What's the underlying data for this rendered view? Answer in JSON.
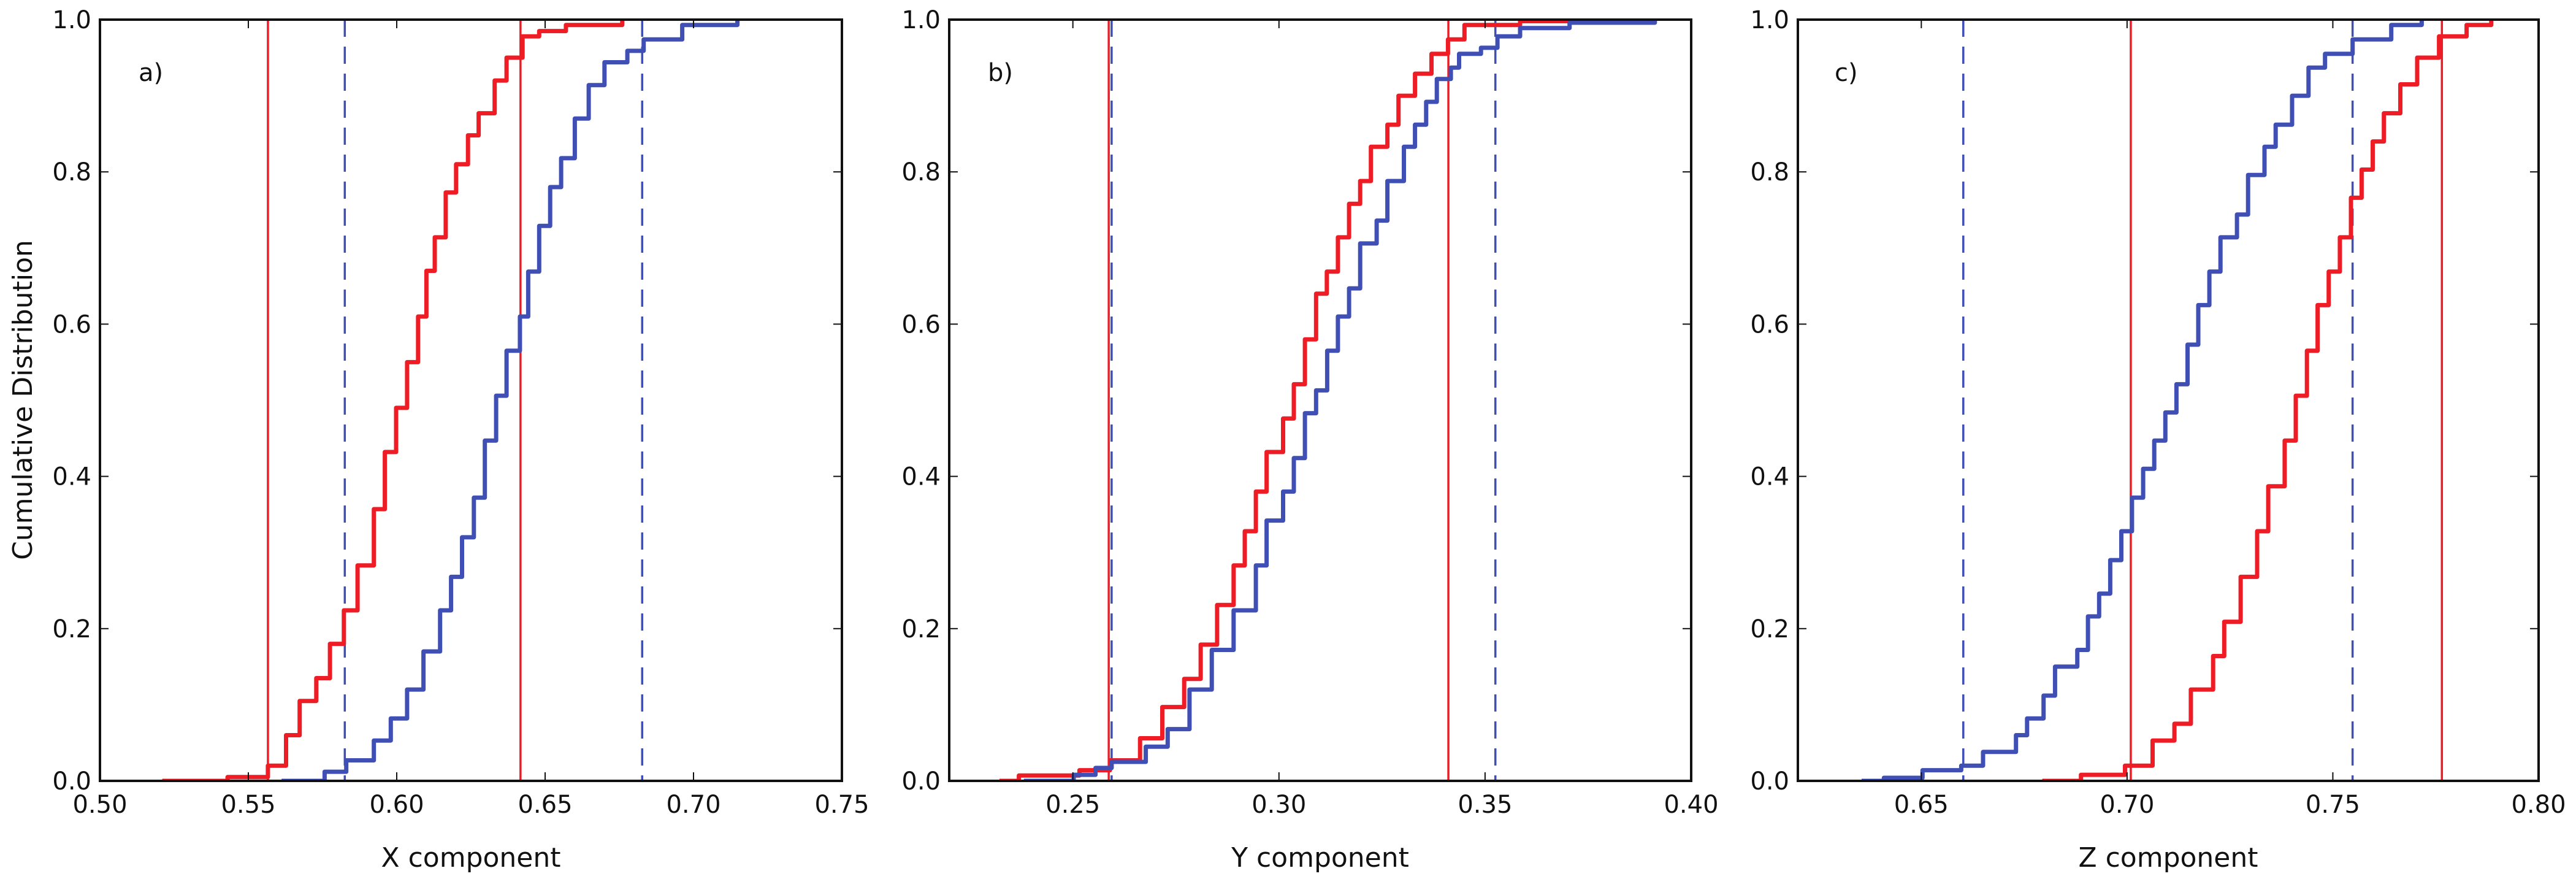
{
  "figure": {
    "ylabel": "Cumulative Distribution",
    "colors": {
      "red": "#ee1c25",
      "blue": "#3f4fb3",
      "axis": "#111111"
    }
  },
  "chart_data": [
    {
      "type": "line",
      "panel_label": "a)",
      "xlabel": "X component",
      "ylabel": "Cumulative Distribution",
      "xlim": [
        0.5,
        0.75
      ],
      "ylim": [
        0.0,
        1.0
      ],
      "xticks": [
        "0.50",
        "0.55",
        "0.60",
        "0.65",
        "0.70",
        "0.75"
      ],
      "yticks": [
        "0.0",
        "0.2",
        "0.4",
        "0.6",
        "0.8",
        "1.0"
      ],
      "grid": false,
      "series": [
        {
          "color": "red",
          "style": "solid",
          "x": [
            0.521,
            0.543,
            0.5566,
            0.5627,
            0.5673,
            0.5729,
            0.5775,
            0.5822,
            0.5868,
            0.5923,
            0.596,
            0.5998,
            0.6035,
            0.6072,
            0.61,
            0.6128,
            0.6165,
            0.62,
            0.624,
            0.6276,
            0.633,
            0.637,
            0.6424,
            0.648,
            0.657,
            0.676
          ],
          "y": [
            0,
            0.005,
            0.02,
            0.06,
            0.105,
            0.135,
            0.18,
            0.224,
            0.283,
            0.357,
            0.432,
            0.49,
            0.55,
            0.61,
            0.67,
            0.714,
            0.773,
            0.81,
            0.848,
            0.877,
            0.92,
            0.95,
            0.978,
            0.985,
            0.993,
            1.0
          ]
        },
        {
          "color": "blue",
          "style": "solid",
          "x": [
            0.5612,
            0.5757,
            0.583,
            0.5923,
            0.598,
            0.6035,
            0.609,
            0.6146,
            0.6183,
            0.622,
            0.626,
            0.6297,
            0.6335,
            0.637,
            0.6415,
            0.6443,
            0.648,
            0.6517,
            0.6554,
            0.66,
            0.6647,
            0.67,
            0.6777,
            0.6832,
            0.6962,
            0.7148
          ],
          "y": [
            0,
            0.012,
            0.027,
            0.053,
            0.082,
            0.12,
            0.17,
            0.224,
            0.268,
            0.32,
            0.372,
            0.447,
            0.506,
            0.565,
            0.61,
            0.669,
            0.729,
            0.78,
            0.818,
            0.87,
            0.914,
            0.944,
            0.959,
            0.974,
            0.993,
            1.0
          ]
        }
      ],
      "vlines": [
        {
          "x": 0.5566,
          "color": "red",
          "style": "solid"
        },
        {
          "x": 0.6417,
          "color": "red",
          "style": "solid"
        },
        {
          "x": 0.5825,
          "color": "blue",
          "style": "dashed"
        },
        {
          "x": 0.6827,
          "color": "blue",
          "style": "dashed"
        }
      ]
    },
    {
      "type": "line",
      "panel_label": "b)",
      "xlabel": "Y component",
      "ylabel": "",
      "xlim": [
        0.22,
        0.4
      ],
      "ylim": [
        0.0,
        1.0
      ],
      "xticks": [
        "0.25",
        "0.30",
        "0.35",
        "0.40"
      ],
      "yticks": [
        "0.0",
        "0.2",
        "0.4",
        "0.6",
        "0.8",
        "1.0"
      ],
      "grid": false,
      "series": [
        {
          "color": "red",
          "style": "solid",
          "x": [
            0.2322,
            0.2369,
            0.2516,
            0.259,
            0.2663,
            0.2717,
            0.277,
            0.281,
            0.285,
            0.289,
            0.2917,
            0.2944,
            0.297,
            0.301,
            0.3036,
            0.3063,
            0.309,
            0.3116,
            0.3143,
            0.317,
            0.3197,
            0.3223,
            0.3263,
            0.329,
            0.333,
            0.337,
            0.341,
            0.345,
            0.3585,
            0.372
          ],
          "y": [
            0,
            0.007,
            0.014,
            0.027,
            0.056,
            0.097,
            0.134,
            0.179,
            0.231,
            0.283,
            0.328,
            0.38,
            0.432,
            0.476,
            0.521,
            0.58,
            0.64,
            0.669,
            0.714,
            0.758,
            0.788,
            0.833,
            0.862,
            0.9,
            0.929,
            0.955,
            0.974,
            0.993,
            0.998,
            1.0
          ]
        },
        {
          "color": "blue",
          "style": "solid",
          "x": [
            0.2381,
            0.2502,
            0.2555,
            0.2594,
            0.2677,
            0.273,
            0.2783,
            0.2837,
            0.289,
            0.2944,
            0.297,
            0.301,
            0.3036,
            0.3063,
            0.309,
            0.3117,
            0.3143,
            0.317,
            0.3197,
            0.3237,
            0.3263,
            0.3303,
            0.333,
            0.3357,
            0.3383,
            0.3417,
            0.3437,
            0.349,
            0.353,
            0.3585,
            0.3705,
            0.3912
          ],
          "y": [
            0,
            0.008,
            0.017,
            0.025,
            0.045,
            0.068,
            0.12,
            0.172,
            0.224,
            0.283,
            0.342,
            0.38,
            0.424,
            0.483,
            0.513,
            0.565,
            0.61,
            0.647,
            0.706,
            0.736,
            0.788,
            0.833,
            0.862,
            0.892,
            0.922,
            0.937,
            0.955,
            0.963,
            0.978,
            0.989,
            0.996,
            1.0
          ]
        }
      ],
      "vlines": [
        {
          "x": 0.2587,
          "color": "red",
          "style": "solid"
        },
        {
          "x": 0.3411,
          "color": "red",
          "style": "solid"
        },
        {
          "x": 0.2594,
          "color": "blue",
          "style": "dashed"
        },
        {
          "x": 0.3525,
          "color": "blue",
          "style": "dashed"
        }
      ]
    },
    {
      "type": "line",
      "panel_label": "c)",
      "xlabel": "Z component",
      "ylabel": "",
      "xlim": [
        0.62,
        0.8
      ],
      "ylim": [
        0.0,
        1.0
      ],
      "xticks": [
        "0.65",
        "0.70",
        "0.75",
        "0.80"
      ],
      "yticks": [
        "0.0",
        "0.2",
        "0.4",
        "0.6",
        "0.8",
        "1.0"
      ],
      "grid": false,
      "series": [
        {
          "color": "blue",
          "style": "solid",
          "x": [
            0.6355,
            0.6409,
            0.6503,
            0.6597,
            0.665,
            0.673,
            0.6757,
            0.6797,
            0.6825,
            0.6879,
            0.6905,
            0.6932,
            0.6959,
            0.6986,
            0.7012,
            0.7039,
            0.7066,
            0.7093,
            0.712,
            0.7147,
            0.7173,
            0.72,
            0.7227,
            0.7267,
            0.7294,
            0.7334,
            0.7361,
            0.7401,
            0.7441,
            0.7481,
            0.7548,
            0.7642,
            0.7716
          ],
          "y": [
            0,
            0.004,
            0.014,
            0.02,
            0.038,
            0.06,
            0.082,
            0.112,
            0.15,
            0.172,
            0.216,
            0.246,
            0.29,
            0.328,
            0.372,
            0.41,
            0.447,
            0.484,
            0.521,
            0.573,
            0.625,
            0.669,
            0.714,
            0.744,
            0.796,
            0.833,
            0.862,
            0.9,
            0.937,
            0.955,
            0.974,
            0.993,
            1.0
          ]
        },
        {
          "color": "red",
          "style": "solid",
          "x": [
            0.6794,
            0.6888,
            0.6995,
            0.7062,
            0.7115,
            0.7155,
            0.7209,
            0.7236,
            0.7276,
            0.7316,
            0.7343,
            0.7383,
            0.741,
            0.7437,
            0.7463,
            0.749,
            0.7517,
            0.7544,
            0.757,
            0.7597,
            0.7624,
            0.7664,
            0.7705,
            0.7758,
            0.7825,
            0.7885
          ],
          "y": [
            0,
            0.008,
            0.02,
            0.053,
            0.075,
            0.12,
            0.164,
            0.209,
            0.268,
            0.328,
            0.387,
            0.447,
            0.506,
            0.565,
            0.625,
            0.669,
            0.714,
            0.766,
            0.803,
            0.84,
            0.877,
            0.915,
            0.95,
            0.978,
            0.993,
            1.0
          ]
        }
      ],
      "vlines": [
        {
          "x": 0.7009,
          "color": "red",
          "style": "solid"
        },
        {
          "x": 0.7765,
          "color": "red",
          "style": "solid"
        },
        {
          "x": 0.6602,
          "color": "blue",
          "style": "dashed"
        },
        {
          "x": 0.7548,
          "color": "blue",
          "style": "dashed"
        }
      ]
    }
  ]
}
